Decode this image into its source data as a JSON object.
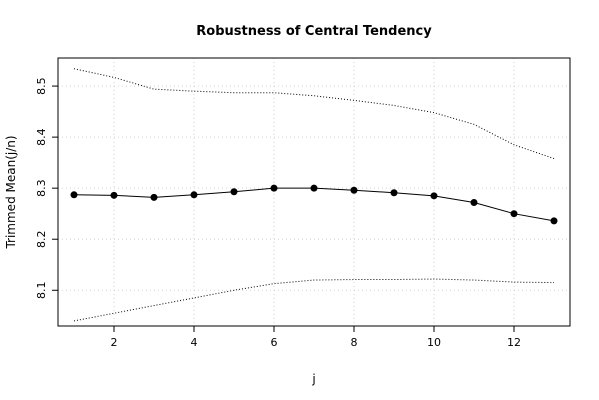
{
  "chart_data": {
    "type": "line",
    "title": "Robustness of Central Tendency",
    "xlabel": "j",
    "ylabel": "Trimmed Mean(j/n)",
    "xlim": [
      0.6,
      13.4
    ],
    "ylim": [
      8.03,
      8.555
    ],
    "x_ticks": [
      2,
      4,
      6,
      8,
      10,
      12
    ],
    "y_ticks": [
      8.1,
      8.2,
      8.3,
      8.4,
      8.5
    ],
    "grid": true,
    "x": [
      1,
      2,
      3,
      4,
      5,
      6,
      7,
      8,
      9,
      10,
      11,
      12,
      13
    ],
    "series": [
      {
        "style": "solid-with-points",
        "values": [
          8.287,
          8.286,
          8.282,
          8.287,
          8.293,
          8.3,
          8.3,
          8.296,
          8.291,
          8.285,
          8.272,
          8.25,
          8.236
        ]
      },
      {
        "style": "dotted",
        "values": [
          8.534,
          8.517,
          8.494,
          8.49,
          8.487,
          8.487,
          8.481,
          8.472,
          8.462,
          8.448,
          8.425,
          8.385,
          8.358
        ]
      },
      {
        "style": "dotted",
        "values": [
          8.04,
          8.055,
          8.07,
          8.085,
          8.1,
          8.113,
          8.12,
          8.121,
          8.121,
          8.122,
          8.12,
          8.116,
          8.115
        ]
      }
    ],
    "colors": {
      "line": "#000000",
      "grid": "#d3d3d3",
      "frame": "#000000"
    }
  }
}
